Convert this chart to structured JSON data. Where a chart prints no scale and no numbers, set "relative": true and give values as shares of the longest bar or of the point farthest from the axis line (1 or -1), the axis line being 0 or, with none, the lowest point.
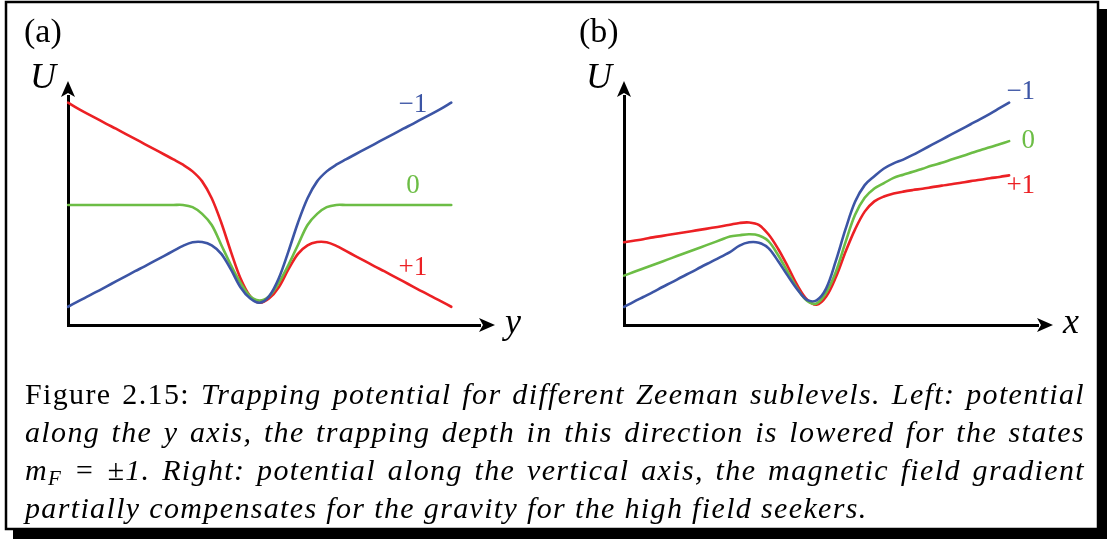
{
  "chart_data": [
    {
      "type": "line",
      "title": "(a)",
      "xlabel": "y",
      "ylabel": "U",
      "relative": true,
      "marker": "none",
      "categories": [
        null,
        null,
        null,
        null,
        null,
        null,
        null,
        null,
        null,
        null,
        null,
        null,
        null,
        null,
        null,
        null,
        null,
        null,
        null,
        null,
        null,
        null,
        null,
        null,
        null,
        null,
        null,
        null,
        null,
        null,
        null,
        null,
        null,
        null,
        null,
        null,
        null,
        null,
        null,
        null,
        null,
        null,
        null,
        null
      ],
      "series": [
        {
          "name": "−1",
          "color": "#3c55a5",
          "values": [
            0.082,
            0.105,
            0.128,
            0.15,
            0.173,
            0.196,
            0.219,
            0.242,
            0.264,
            0.287,
            0.31,
            0.333,
            0.356,
            0.372,
            0.373,
            0.358,
            0.32,
            0.25,
            0.17,
            0.12,
            0.1,
            0.13,
            0.21,
            0.33,
            0.46,
            0.57,
            0.646,
            0.691,
            0.721,
            0.745,
            0.768,
            0.791,
            0.814,
            0.837,
            0.86,
            0.883,
            0.905,
            0.928,
            0.951,
            0.974,
            1,
            null,
            null,
            null
          ]
        },
        {
          "name": "0",
          "color": "#6cbd45",
          "values": [
            0.54,
            0.54,
            0.54,
            0.54,
            0.54,
            0.54,
            0.54,
            0.54,
            0.54,
            0.54,
            0.54,
            0.54,
            0.54,
            0.53,
            0.5,
            0.45,
            0.36,
            0.27,
            0.19,
            0.13,
            0.11,
            0.13,
            0.19,
            0.27,
            0.36,
            0.45,
            0.5,
            0.53,
            0.54,
            0.54,
            0.54,
            0.54,
            0.54,
            0.54,
            0.54,
            0.54,
            0.54,
            0.54,
            0.54,
            0.54,
            0.54,
            null,
            null,
            null
          ]
        },
        {
          "name": "+1",
          "color": "#ec2024",
          "values": [
            1,
            0.974,
            0.951,
            0.928,
            0.905,
            0.883,
            0.86,
            0.837,
            0.814,
            0.791,
            0.768,
            0.745,
            0.721,
            0.691,
            0.646,
            0.57,
            0.46,
            0.33,
            0.21,
            0.13,
            0.1,
            0.12,
            0.17,
            0.25,
            0.32,
            0.358,
            0.373,
            0.372,
            0.356,
            0.333,
            0.31,
            0.287,
            0.264,
            0.242,
            0.219,
            0.196,
            0.173,
            0.15,
            0.128,
            0.105,
            0.082,
            null,
            null,
            null
          ]
        }
      ]
    },
    {
      "type": "line",
      "title": "(b)",
      "xlabel": "x",
      "ylabel": "U",
      "relative": true,
      "marker": "none",
      "categories": [
        null,
        null,
        null,
        null,
        null,
        null,
        null,
        null,
        null,
        null,
        null,
        null,
        null,
        null,
        null,
        null,
        null,
        null,
        null,
        null,
        null,
        null,
        null,
        null,
        null,
        null,
        null,
        null,
        null,
        null,
        null,
        null,
        null,
        null,
        null,
        null,
        null,
        null,
        null,
        null,
        null,
        null,
        null,
        null
      ],
      "series": [
        {
          "name": "−1",
          "color": "#3c55a5",
          "values": [
            0.081,
            0.104,
            0.126,
            0.148,
            0.171,
            0.193,
            0.216,
            0.238,
            0.261,
            0.283,
            0.305,
            0.328,
            0.357,
            0.372,
            0.37,
            0.346,
            0.288,
            0.222,
            0.16,
            0.113,
            0.111,
            0.165,
            0.288,
            0.43,
            0.554,
            0.629,
            0.669,
            0.704,
            0.727,
            0.744,
            0.765,
            0.788,
            0.811,
            0.834,
            0.857,
            0.88,
            0.903,
            0.926,
            0.95,
            0.975,
            1,
            null,
            null,
            null
          ]
        },
        {
          "name": "0",
          "color": "#6cbd45",
          "values": [
            0.222,
            0.238,
            0.254,
            0.27,
            0.286,
            0.302,
            0.318,
            0.334,
            0.35,
            0.366,
            0.382,
            0.398,
            0.404,
            0.408,
            0.403,
            0.377,
            0.315,
            0.239,
            0.164,
            0.109,
            0.097,
            0.146,
            0.239,
            0.372,
            0.496,
            0.572,
            0.614,
            0.638,
            0.662,
            0.676,
            0.689,
            0.703,
            0.717,
            0.73,
            0.744,
            0.758,
            0.772,
            0.786,
            0.799,
            0.813,
            0.827,
            null,
            null,
            null
          ]
        },
        {
          "name": "+1",
          "color": "#ec2024",
          "values": [
            0.372,
            0.379,
            0.386,
            0.394,
            0.401,
            0.408,
            0.415,
            0.422,
            0.429,
            0.436,
            0.443,
            0.451,
            0.459,
            0.461,
            0.45,
            0.408,
            0.343,
            0.264,
            0.179,
            0.115,
            0.091,
            0.128,
            0.215,
            0.328,
            0.43,
            0.51,
            0.556,
            0.578,
            0.591,
            0.6,
            0.607,
            0.613,
            0.62,
            0.627,
            0.633,
            0.64,
            0.647,
            0.653,
            0.66,
            0.666,
            0.673,
            null,
            null,
            null
          ]
        }
      ]
    },
    {
      "type": "other",
      "annotations": [
        "Figure 2.15:",
        "Trapping potential for different Zeeman sublevels. Left: potential",
        "along the y axis, the trapping depth in this direction is lowered for the states",
        "m$_{F}$ = ±1. Right: potential along the vertical axis, the magnetic field gradient",
        "partially compensates for the gravity for the high field seekers."
      ]
    }
  ]
}
